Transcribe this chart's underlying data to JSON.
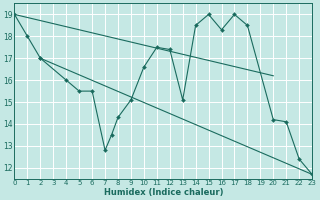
{
  "xlabel": "Humidex (Indice chaleur)",
  "bg_color": "#c5e8e4",
  "grid_color": "#ffffff",
  "line_color": "#1a6b5e",
  "xlim": [
    0,
    23
  ],
  "ylim": [
    11.5,
    19.5
  ],
  "xticks": [
    0,
    1,
    2,
    3,
    4,
    5,
    6,
    7,
    8,
    9,
    10,
    11,
    12,
    13,
    14,
    15,
    16,
    17,
    18,
    19,
    20,
    21,
    22,
    23
  ],
  "yticks": [
    12,
    13,
    14,
    15,
    16,
    17,
    18,
    19
  ],
  "series": [
    {
      "x": [
        0,
        1,
        2
      ],
      "y": [
        19,
        18,
        17
      ],
      "markers": true,
      "straight": false
    },
    {
      "x": [
        2,
        4,
        5,
        6,
        7,
        7.5,
        8,
        9,
        10,
        11,
        12,
        13,
        14,
        15,
        16,
        17,
        18,
        20,
        21,
        22,
        23
      ],
      "y": [
        17,
        16,
        15.5,
        15.5,
        12.8,
        13.5,
        14.3,
        15.1,
        16.6,
        17.5,
        17.4,
        15.1,
        18.5,
        19.0,
        18.3,
        19.0,
        18.5,
        14.2,
        14.1,
        12.4,
        11.7
      ],
      "markers": true,
      "straight": false
    },
    {
      "x": [
        0,
        20
      ],
      "y": [
        19,
        16.2
      ],
      "markers": false,
      "straight": true
    },
    {
      "x": [
        2,
        23
      ],
      "y": [
        17,
        11.7
      ],
      "markers": false,
      "straight": true
    }
  ]
}
